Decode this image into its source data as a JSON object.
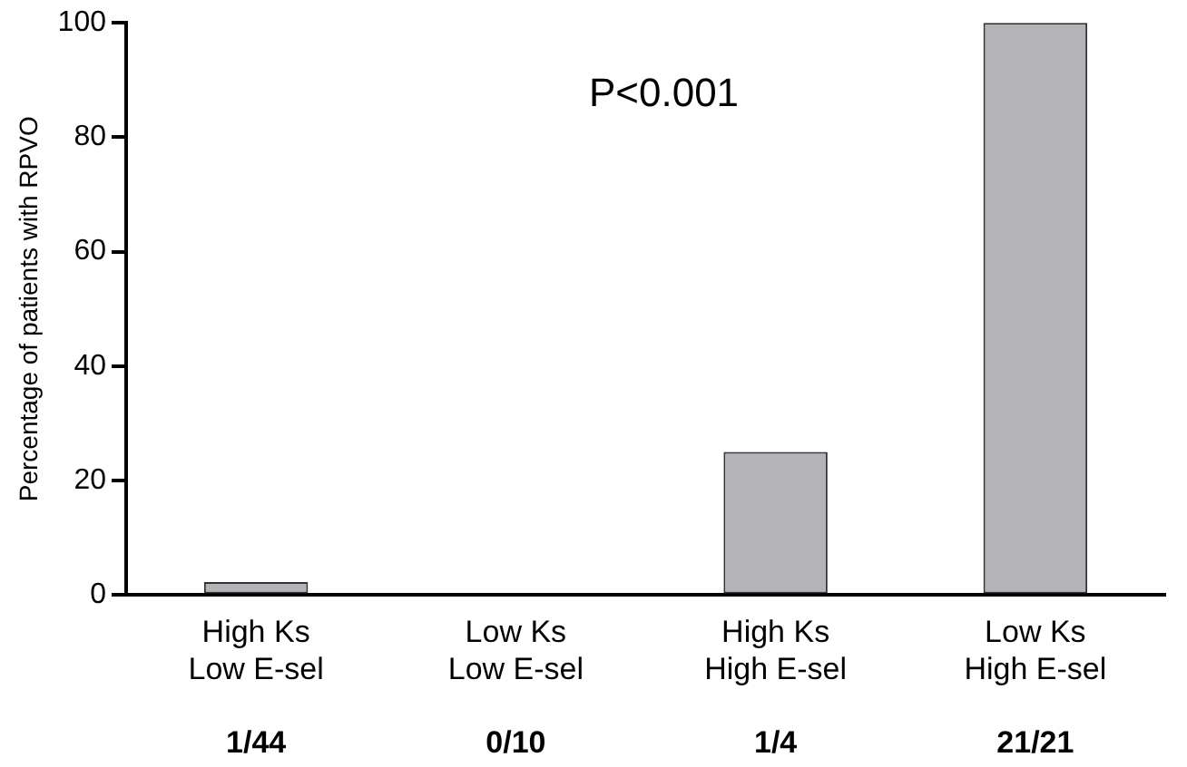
{
  "chart_data": {
    "type": "bar",
    "ylabel": "Percentage of patients with RPVO",
    "categories": [
      "High Ks\nLow E-sel",
      "Low Ks\nLow E-sel",
      "High Ks\nHigh E-sel",
      "Low Ks\nHigh E-sel"
    ],
    "values": [
      2.3,
      0,
      25,
      100
    ],
    "color": "#b3b3b8",
    "ylim": [
      0,
      100
    ],
    "yticks": [
      0,
      20,
      40,
      60,
      80,
      100
    ],
    "grid": false,
    "legend": false,
    "annotations": [
      "P<0.001",
      "1/44",
      "0/10",
      "1/4",
      "21/21"
    ]
  }
}
